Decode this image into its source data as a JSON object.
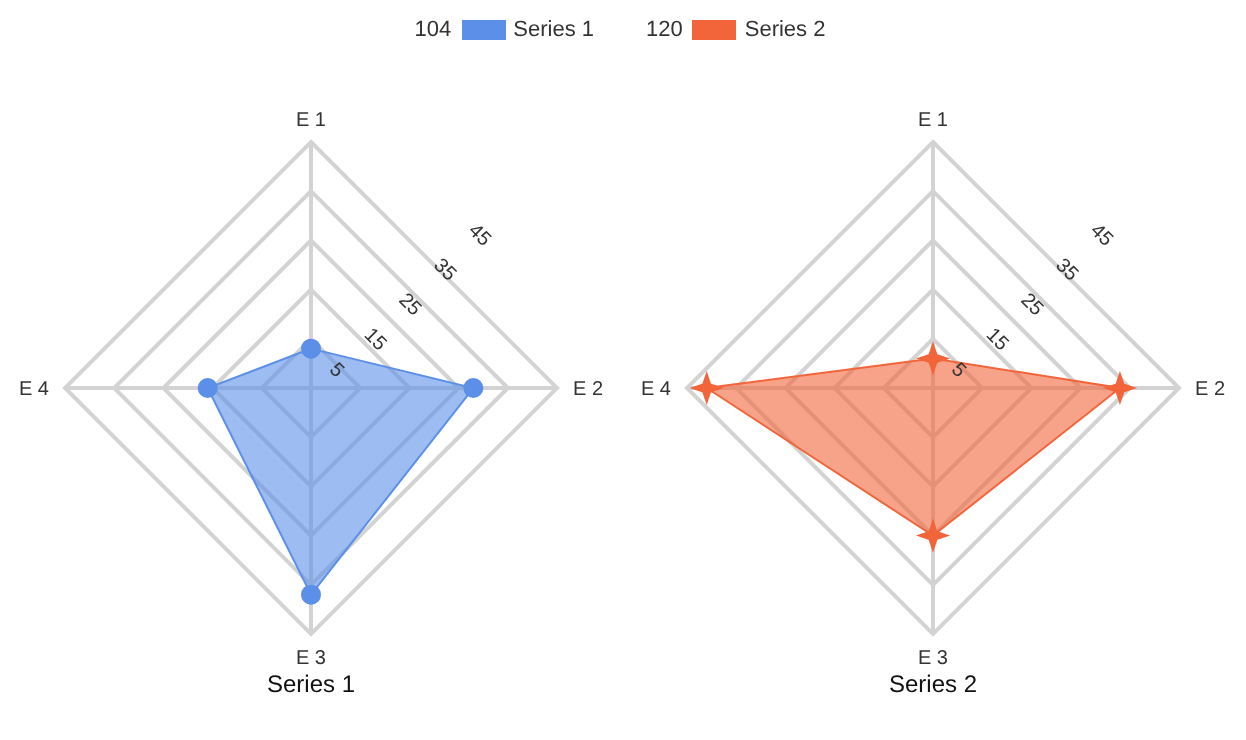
{
  "chart_data": [
    {
      "type": "radar",
      "title": "Series 1",
      "categories": [
        "E 1",
        "E 2",
        "E 3",
        "E 4"
      ],
      "ylim": [
        0,
        50
      ],
      "yticks": [
        5,
        15,
        25,
        35,
        45
      ],
      "legend": "top",
      "marker": "circle",
      "totals": [
        "104"
      ],
      "series": [
        {
          "name": "Series 1",
          "color": "#5b8fe8",
          "values": [
            8,
            33,
            42,
            21
          ]
        }
      ]
    },
    {
      "type": "radar",
      "title": "Series 2",
      "categories": [
        "E 1",
        "E 2",
        "E 3",
        "E 4"
      ],
      "ylim": [
        0,
        50
      ],
      "yticks": [
        5,
        15,
        25,
        35,
        45
      ],
      "legend": "top",
      "marker": "star",
      "totals": [
        "120"
      ],
      "series": [
        {
          "name": "Series 2",
          "color": "#f2653a",
          "values": [
            6,
            38,
            30,
            46
          ]
        }
      ]
    }
  ]
}
